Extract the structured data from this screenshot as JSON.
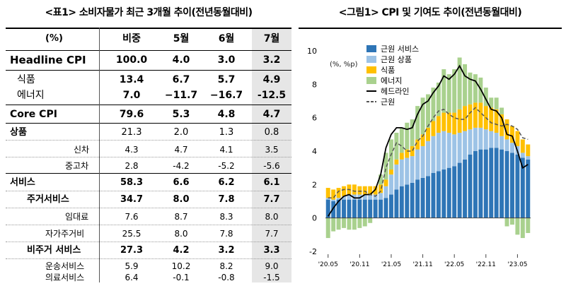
{
  "table": {
    "title": "<표1> 소비자물가 최근 3개월 추이(전년동월대비)",
    "columns": [
      "(%)",
      "비중",
      "5월",
      "6월",
      "7월"
    ],
    "rows": [
      {
        "label": "Headline CPI",
        "values": [
          "100.0",
          "4.0",
          "3.0",
          "3.2"
        ]
      },
      {
        "label": "식품",
        "values": [
          "13.4",
          "6.7",
          "5.7",
          "4.9"
        ]
      },
      {
        "label": "에너지",
        "values": [
          "7.0",
          "−11.7",
          "−16.7",
          "-12.5"
        ]
      },
      {
        "label": "Core CPI",
        "values": [
          "79.6",
          "5.3",
          "4.8",
          "4.7"
        ]
      },
      {
        "label": "상품",
        "values": [
          "21.3",
          "2.0",
          "1.3",
          "0.8"
        ]
      },
      {
        "label": "신차",
        "values": [
          "4.3",
          "4.7",
          "4.1",
          "3.5"
        ]
      },
      {
        "label": "중고차",
        "values": [
          "2.8",
          "-4.2",
          "-5.2",
          "-5.6"
        ]
      },
      {
        "label": "서비스",
        "values": [
          "58.3",
          "6.6",
          "6.2",
          "6.1"
        ]
      },
      {
        "label": "주거서비스",
        "values": [
          "34.7",
          "8.0",
          "7.8",
          "7.7"
        ]
      },
      {
        "label": "임대료",
        "values": [
          "7.6",
          "8.7",
          "8.3",
          "8.0"
        ]
      },
      {
        "label": "자가주거비",
        "values": [
          "25.5",
          "8.0",
          "7.8",
          "7.7"
        ]
      },
      {
        "label": "비주거 서비스",
        "values": [
          "27.3",
          "4.2",
          "3.2",
          "3.3"
        ]
      },
      {
        "label": "운송서비스",
        "values": [
          "5.9",
          "10.2",
          "8.2",
          "9.0"
        ]
      },
      {
        "label": "의료서비스",
        "values": [
          "6.4",
          "-0.1",
          "-0.8",
          "-1.5"
        ]
      }
    ]
  },
  "chart_data": {
    "type": "bar",
    "title": "<그림1> CPI 및 기여도 추이(전년동월대비)",
    "unit_label": "(%, %p)",
    "ylim": [
      -2,
      10
    ],
    "yticks": [
      -2,
      0,
      2,
      4,
      6,
      8,
      10
    ],
    "xtick_labels": [
      "'20.05",
      "'20.11",
      "'21.05",
      "'21.11",
      "'22.05",
      "'22.11",
      "'23.05"
    ],
    "categories": [
      "'20.05",
      "'20.06",
      "'20.07",
      "'20.08",
      "'20.09",
      "'20.10",
      "'20.11",
      "'20.12",
      "'21.01",
      "'21.02",
      "'21.03",
      "'21.04",
      "'21.05",
      "'21.06",
      "'21.07",
      "'21.08",
      "'21.09",
      "'21.10",
      "'21.11",
      "'21.12",
      "'22.01",
      "'22.02",
      "'22.03",
      "'22.04",
      "'22.05",
      "'22.06",
      "'22.07",
      "'22.08",
      "'22.09",
      "'22.10",
      "'22.11",
      "'22.12",
      "'23.01",
      "'23.02",
      "'23.03",
      "'23.04",
      "'23.05",
      "'23.06",
      "'23.07"
    ],
    "series": [
      {
        "name": "근원 서비스",
        "color": "#2e75b6",
        "values": [
          1.1,
          1.0,
          1.1,
          1.1,
          1.1,
          1.1,
          1.1,
          1.1,
          1.1,
          1.1,
          1.1,
          1.2,
          1.4,
          1.7,
          1.9,
          2.0,
          2.1,
          2.3,
          2.4,
          2.5,
          2.7,
          2.8,
          2.9,
          3.0,
          3.1,
          3.3,
          3.5,
          3.8,
          4.0,
          4.1,
          4.1,
          4.2,
          4.2,
          4.1,
          4.0,
          3.9,
          3.8,
          3.6,
          3.5
        ]
      },
      {
        "name": "근원 상품",
        "color": "#9dc3e6",
        "values": [
          0.1,
          0.1,
          0.1,
          0.2,
          0.3,
          0.3,
          0.3,
          0.3,
          0.3,
          0.3,
          0.4,
          0.7,
          1.2,
          1.5,
          1.6,
          1.6,
          1.6,
          1.8,
          1.9,
          2.1,
          2.2,
          2.3,
          2.3,
          2.1,
          1.9,
          1.8,
          1.7,
          1.5,
          1.4,
          1.3,
          1.2,
          1.0,
          0.9,
          0.8,
          0.7,
          0.6,
          0.5,
          0.3,
          0.2
        ]
      },
      {
        "name": "식품",
        "color": "#ffc000",
        "values": [
          0.6,
          0.6,
          0.6,
          0.6,
          0.6,
          0.6,
          0.5,
          0.5,
          0.5,
          0.5,
          0.5,
          0.4,
          0.3,
          0.3,
          0.4,
          0.5,
          0.6,
          0.6,
          0.7,
          0.8,
          0.9,
          1.0,
          1.1,
          1.2,
          1.3,
          1.4,
          1.5,
          1.5,
          1.5,
          1.5,
          1.4,
          1.4,
          1.4,
          1.3,
          1.2,
          1.0,
          0.9,
          0.8,
          0.7
        ]
      },
      {
        "name": "에너지",
        "color": "#a9d18e",
        "values": [
          -1.2,
          -0.8,
          -0.7,
          -0.6,
          -0.7,
          -0.7,
          -0.6,
          -0.5,
          -0.3,
          0.0,
          0.6,
          1.6,
          1.8,
          1.6,
          1.5,
          1.6,
          1.6,
          2.0,
          2.2,
          2.0,
          2.0,
          2.0,
          2.6,
          2.3,
          2.6,
          3.1,
          2.5,
          1.9,
          1.7,
          1.5,
          1.1,
          0.6,
          0.7,
          0.4,
          -0.5,
          -0.4,
          -1.0,
          -1.2,
          -0.9
        ]
      },
      {
        "name": "헤드라인",
        "color": "#000000",
        "type": "line",
        "values": [
          0.1,
          0.6,
          1.0,
          1.3,
          1.4,
          1.2,
          1.2,
          1.4,
          1.4,
          1.7,
          2.6,
          4.2,
          5.0,
          5.4,
          5.4,
          5.3,
          5.4,
          6.2,
          6.8,
          7.0,
          7.5,
          7.9,
          8.5,
          8.3,
          8.6,
          9.1,
          8.5,
          8.3,
          8.2,
          7.7,
          7.1,
          6.5,
          6.4,
          6.0,
          5.0,
          4.9,
          4.0,
          3.0,
          3.2
        ]
      },
      {
        "name": "근원",
        "color": "#555555",
        "type": "line",
        "dash": true,
        "values": [
          1.2,
          1.2,
          1.6,
          1.7,
          1.7,
          1.6,
          1.6,
          1.6,
          1.4,
          1.3,
          1.6,
          3.0,
          3.8,
          4.5,
          4.3,
          4.0,
          4.0,
          4.6,
          4.9,
          5.5,
          6.0,
          6.4,
          6.5,
          6.2,
          6.0,
          5.9,
          5.9,
          6.3,
          6.6,
          6.3,
          6.0,
          5.7,
          5.6,
          5.5,
          5.6,
          5.5,
          5.3,
          4.8,
          4.7
        ]
      }
    ]
  }
}
